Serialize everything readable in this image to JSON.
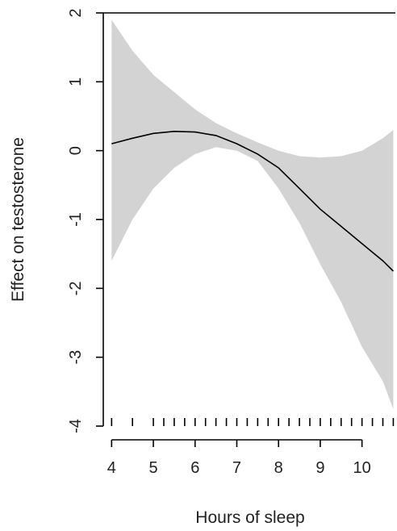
{
  "chart_data": {
    "type": "line",
    "title": "",
    "xlabel": "Hours of sleep",
    "ylabel": "Effect on testosterone",
    "xlim": [
      3.8,
      10.8
    ],
    "ylim": [
      -4,
      2
    ],
    "xticks": [
      4,
      5,
      6,
      7,
      8,
      9,
      10
    ],
    "yticks": [
      2,
      1,
      0,
      -1,
      -2,
      -3,
      -4
    ],
    "series": [
      {
        "role": "estimate",
        "color": "#000000",
        "x": [
          4,
          4.5,
          5,
          5.5,
          6,
          6.5,
          7,
          7.5,
          8,
          8.5,
          9,
          9.5,
          10,
          10.5,
          10.75
        ],
        "y": [
          0.1,
          0.18,
          0.25,
          0.28,
          0.27,
          0.22,
          0.1,
          -0.05,
          -0.25,
          -0.55,
          -0.85,
          -1.1,
          -1.35,
          -1.6,
          -1.75
        ]
      }
    ],
    "band": {
      "color": "#d3d3d3",
      "x": [
        4,
        4.5,
        5,
        5.5,
        6,
        6.5,
        7,
        7.5,
        8,
        8.5,
        9,
        9.5,
        10,
        10.5,
        10.75
      ],
      "upper": [
        1.9,
        1.45,
        1.1,
        0.85,
        0.6,
        0.4,
        0.25,
        0.12,
        0,
        -0.08,
        -0.1,
        -0.08,
        0,
        0.18,
        0.3
      ],
      "lower": [
        -1.6,
        -1.0,
        -0.55,
        -0.25,
        -0.05,
        0.05,
        0,
        -0.15,
        -0.55,
        -1.05,
        -1.65,
        -2.2,
        -2.85,
        -3.35,
        -3.75
      ]
    },
    "rug": [
      4,
      4.5,
      5,
      5.25,
      5.5,
      5.75,
      6,
      6.25,
      6.5,
      6.75,
      7,
      7.25,
      7.5,
      7.75,
      8,
      8.25,
      8.5,
      8.75,
      9,
      9.25,
      9.5,
      9.75,
      10,
      10.25,
      10.5,
      10.75
    ],
    "grid": false,
    "legend": "none"
  }
}
